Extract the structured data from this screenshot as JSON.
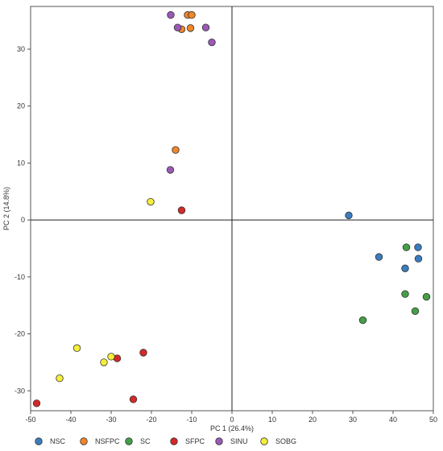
{
  "chart_data": {
    "type": "scatter",
    "title": "",
    "xlabel": "PC 1 (26.4%)",
    "ylabel": "PC 2 (14.8%)",
    "xlim": [
      -50,
      50
    ],
    "ylim": [
      -33.5,
      37.5
    ],
    "xticks": [
      -50,
      -40,
      -30,
      -20,
      -10,
      0,
      10,
      20,
      30,
      40,
      50
    ],
    "yticks": [
      -30,
      -20,
      -10,
      0,
      10,
      20,
      30
    ],
    "grid": false,
    "legend_position": "bottom",
    "series": [
      {
        "name": "NSC",
        "color": "#3a7dbf",
        "points": [
          [
            29,
            0.8
          ],
          [
            36.5,
            -6.5
          ],
          [
            43,
            -8.5
          ],
          [
            46.2,
            -4.8
          ],
          [
            46.3,
            -6.8
          ]
        ]
      },
      {
        "name": "NSFPC",
        "color": "#f0862a",
        "points": [
          [
            -11,
            36
          ],
          [
            -10,
            36
          ],
          [
            -12.5,
            33.5
          ],
          [
            -10.3,
            33.7
          ],
          [
            -14,
            12.3
          ]
        ]
      },
      {
        "name": "SC",
        "color": "#43a047",
        "points": [
          [
            43.3,
            -4.8
          ],
          [
            43,
            -13
          ],
          [
            48.3,
            -13.5
          ],
          [
            45.5,
            -16
          ],
          [
            32.5,
            -17.6
          ]
        ]
      },
      {
        "name": "SFPC",
        "color": "#d62828",
        "points": [
          [
            -12.5,
            1.7
          ],
          [
            -22,
            -23.3
          ],
          [
            -28.5,
            -24.3
          ],
          [
            -24.5,
            -31.5
          ],
          [
            -48.5,
            -32.2
          ]
        ]
      },
      {
        "name": "SINU",
        "color": "#9b59b6",
        "points": [
          [
            -15.2,
            36
          ],
          [
            -13.5,
            33.8
          ],
          [
            -6.5,
            33.8
          ],
          [
            -5,
            31.2
          ],
          [
            -15.3,
            8.8
          ]
        ]
      },
      {
        "name": "SOBG",
        "color": "#f5ee3a",
        "points": [
          [
            -20.2,
            3.2
          ],
          [
            -38.5,
            -22.5
          ],
          [
            -30,
            -24
          ],
          [
            -31.8,
            -25
          ],
          [
            -42.8,
            -27.8
          ]
        ]
      }
    ]
  }
}
